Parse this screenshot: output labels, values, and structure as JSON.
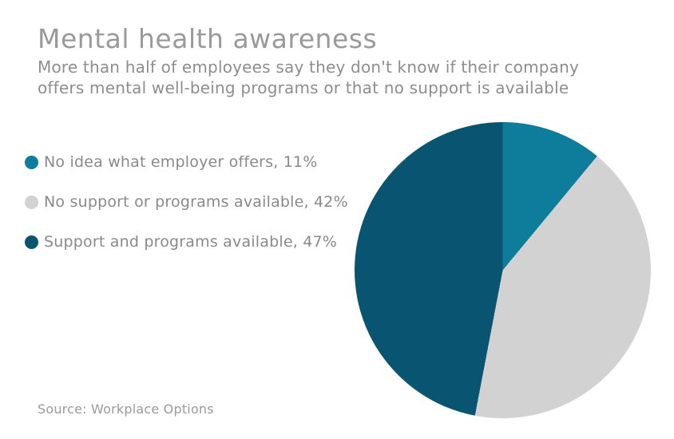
{
  "page": {
    "background_color": "#ffffff"
  },
  "header": {
    "title": "Mental health awareness",
    "subtitle_line1": "More than half of employees say they don't know if their company",
    "subtitle_line2": "offers mental well-being programs or that no support is available"
  },
  "chart_data": {
    "type": "pie",
    "title": "Mental health awareness",
    "subtitle": "More than half of employees say they don't know if their company offers mental well-being programs or that no support is available",
    "unit": "%",
    "start_angle_deg": 0,
    "direction": "clockwise",
    "legend_position": "left",
    "slices": [
      {
        "label": "No idea what employer offers",
        "value": 11,
        "color": "#0e7c9b",
        "display": "No idea what employer offers, 11%"
      },
      {
        "label": "No support or programs available",
        "value": 42,
        "color": "#d2d2d2",
        "display": "No support or programs available, 42%"
      },
      {
        "label": "Support and programs available",
        "value": 47,
        "color": "#095571",
        "display": "Support and programs available, 47%"
      }
    ]
  },
  "source": {
    "text": "Source: Workplace Options"
  },
  "colors": {
    "title_text": "#9a9a9a",
    "subtitle_text": "#8e8e8e",
    "legend_text": "#8a8a8a",
    "source_text": "#9b9b9b"
  }
}
